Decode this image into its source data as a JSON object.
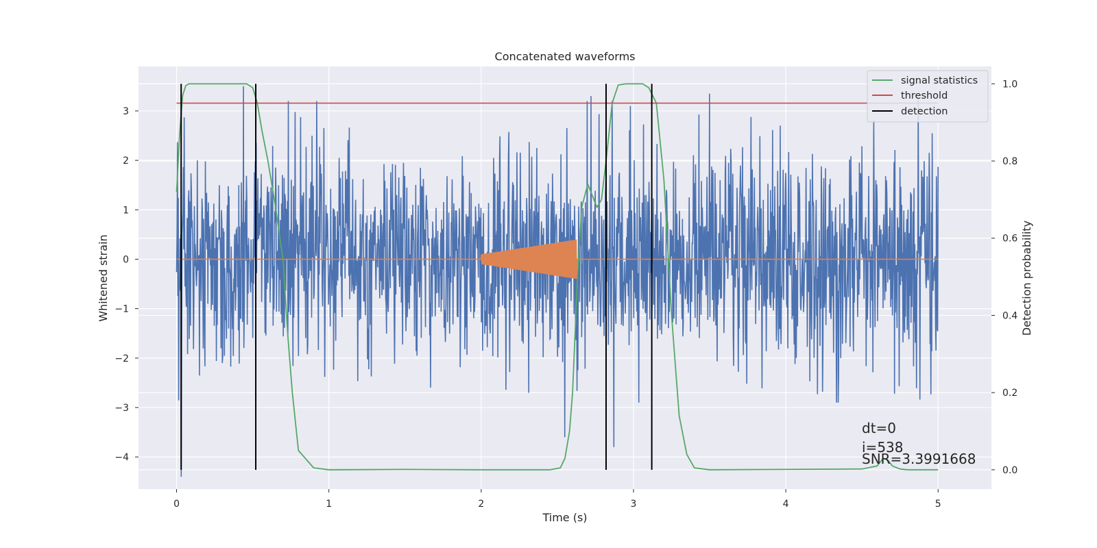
{
  "chart_data": {
    "type": "line",
    "title": "Concatenated waveforms",
    "xlabel": "Time (s)",
    "ylabel": "Whitened strain",
    "ylabel_right": "Detection probability",
    "xlim": [
      -0.25,
      5.35
    ],
    "ylim": [
      -4.65,
      3.9
    ],
    "ylim_right": [
      -0.05,
      1.045
    ],
    "x_ticks": [
      0,
      1,
      2,
      3,
      4,
      5
    ],
    "y_ticks": [
      -4,
      -3,
      -2,
      -1,
      0,
      1,
      2,
      3
    ],
    "y_ticks_right": [
      0.0,
      0.2,
      0.4,
      0.6,
      0.8,
      1.0
    ],
    "x_tick_labels": [
      "0",
      "1",
      "2",
      "3",
      "4",
      "5"
    ],
    "y_tick_labels": [
      "−4",
      "−3",
      "−2",
      "−1",
      "0",
      "1",
      "2",
      "3"
    ],
    "y_tick_labels_right": [
      "0.0",
      "0.2",
      "0.4",
      "0.6",
      "0.8",
      "1.0"
    ],
    "grid": true,
    "legend_position": "top-right",
    "series": [
      {
        "kind": "noise",
        "axis": "left",
        "color": "#4c72b0",
        "x_range": [
          0,
          5
        ],
        "envelope": [
          -2.9,
          3.5
        ],
        "spikes": [
          {
            "x": 0.03,
            "y": -4.4
          },
          {
            "x": 0.44,
            "y": 3.5
          },
          {
            "x": 2.55,
            "y": -3.6
          },
          {
            "x": 2.72,
            "y": 3.3
          },
          {
            "x": 2.87,
            "y": -3.8
          },
          {
            "x": 2.98,
            "y": 3.1
          },
          {
            "x": 3.5,
            "y": 3.35
          },
          {
            "x": 4.87,
            "y": 3.25
          }
        ]
      },
      {
        "kind": "chirp",
        "axis": "left",
        "color": "#dd8452",
        "x_range": [
          0,
          5
        ],
        "chirp_range": [
          2.0,
          2.63
        ],
        "amplitude_range": [
          0.1,
          0.4
        ]
      },
      {
        "name": "signal statistics",
        "axis": "right",
        "color": "#55a868",
        "x": [
          0.0,
          0.02,
          0.04,
          0.06,
          0.08,
          0.12,
          0.2,
          0.3,
          0.4,
          0.46,
          0.5,
          0.53,
          0.56,
          0.6,
          0.65,
          0.7,
          0.73,
          0.76,
          0.8,
          0.9,
          1.0,
          1.5,
          2.0,
          2.45,
          2.52,
          2.55,
          2.58,
          2.6,
          2.63,
          2.66,
          2.7,
          2.73,
          2.76,
          2.79,
          2.82,
          2.86,
          2.9,
          2.95,
          3.0,
          3.06,
          3.1,
          3.15,
          3.2,
          3.25,
          3.3,
          3.35,
          3.4,
          3.5,
          4.0,
          4.5,
          4.6,
          4.64,
          4.67,
          4.7,
          4.75,
          4.8,
          5.0
        ],
        "y": [
          0.72,
          0.87,
          0.97,
          0.995,
          1.0,
          1.0,
          1.0,
          1.0,
          1.0,
          1.0,
          0.99,
          0.95,
          0.88,
          0.8,
          0.68,
          0.54,
          0.35,
          0.2,
          0.05,
          0.005,
          0.0,
          0.001,
          0.0,
          0.0,
          0.005,
          0.03,
          0.1,
          0.2,
          0.48,
          0.68,
          0.74,
          0.71,
          0.68,
          0.7,
          0.8,
          0.95,
          0.997,
          1.0,
          1.0,
          1.0,
          0.99,
          0.95,
          0.75,
          0.4,
          0.14,
          0.04,
          0.005,
          0.0,
          0.001,
          0.002,
          0.01,
          0.03,
          0.025,
          0.01,
          0.002,
          0.0,
          0.0
        ]
      },
      {
        "name": "threshold",
        "axis": "right",
        "color": "#c44e52",
        "x": [
          0,
          5
        ],
        "y": [
          0.95,
          0.95
        ]
      },
      {
        "name": "detection",
        "axis": "right",
        "color": "#000000",
        "x": [
          0.03,
          0.52,
          2.82,
          3.12
        ]
      }
    ],
    "annotations": [
      "dt=0",
      "i=538",
      "SNR=3.3991668"
    ]
  }
}
